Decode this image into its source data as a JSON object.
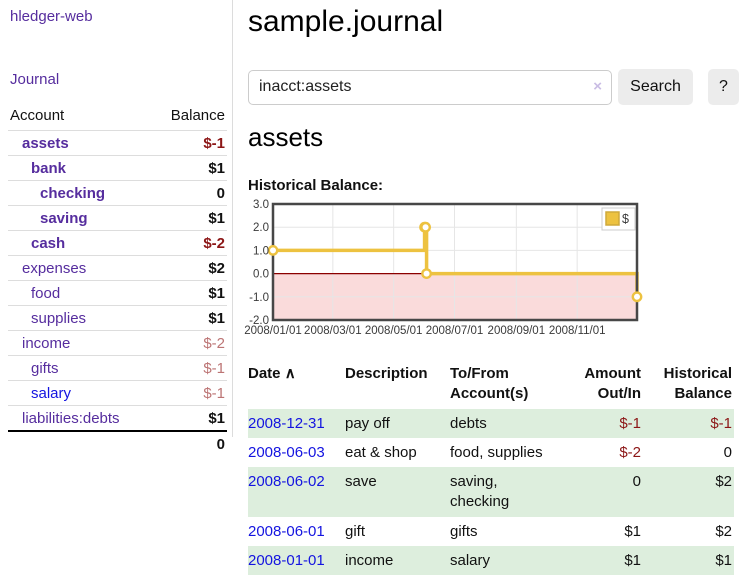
{
  "app": {
    "brand": "hledger-web",
    "nav_journal": "Journal"
  },
  "sidebar": {
    "headers": {
      "account": "Account",
      "balance": "Balance"
    },
    "accounts": [
      {
        "name": "assets",
        "balance": "$-1"
      },
      {
        "name": "bank",
        "balance": "$1"
      },
      {
        "name": "checking",
        "balance": "0"
      },
      {
        "name": "saving",
        "balance": "$1"
      },
      {
        "name": "cash",
        "balance": "$-2"
      },
      {
        "name": "expenses",
        "balance": "$2"
      },
      {
        "name": "food",
        "balance": "$1"
      },
      {
        "name": "supplies",
        "balance": "$1"
      },
      {
        "name": "income",
        "balance": "$-2"
      },
      {
        "name": "gifts",
        "balance": "$-1"
      },
      {
        "name": "salary",
        "balance": "$-1"
      },
      {
        "name": "liabilities:debts",
        "balance": "$1"
      }
    ],
    "total": "0"
  },
  "header": {
    "title": "sample.journal"
  },
  "search": {
    "value": "inacct:assets",
    "clear_icon": "×",
    "button_label": "Search",
    "help_label": "?"
  },
  "account_page": {
    "title": "assets",
    "chart_label": "Historical Balance:"
  },
  "chart_data": {
    "type": "line",
    "step": true,
    "title": "Historical Balance",
    "series": [
      {
        "name": "$",
        "color": "#EDC240",
        "points": [
          [
            "2008-01-01",
            1.0
          ],
          [
            "2008-06-01",
            2.0
          ],
          [
            "2008-06-02",
            2.0
          ],
          [
            "2008-06-03",
            0.0
          ],
          [
            "2008-12-31",
            -1.0
          ]
        ]
      }
    ],
    "xlim": [
      "2008-01-01",
      "2008-12-31"
    ],
    "ylim": [
      -2,
      3
    ],
    "x_ticks": [
      "2008/01/01",
      "2008/03/01",
      "2008/05/01",
      "2008/07/01",
      "2008/09/01",
      "2008/11/01"
    ],
    "y_ticks": [
      3.0,
      2.0,
      1.0,
      0.0,
      -1.0,
      -2.0
    ],
    "legend": {
      "label": "$",
      "position": "top-right"
    },
    "grid": true,
    "colors": {
      "line": "#EDC240",
      "marker_fill": "#ffffff",
      "negative_region": "#fadbdb",
      "zero_line": "#8b0000",
      "border": "#474747",
      "gridline": "#e6e6e6",
      "tick_text": "#3a3a3a"
    }
  },
  "register": {
    "headers": {
      "date": "Date",
      "sort_icon": "∧",
      "description": "Description",
      "accounts": "To/From Account(s)",
      "amount": "Amount Out/In",
      "balance": "Historical Balance"
    },
    "rows": [
      {
        "date": "2008-12-31",
        "description": "pay off",
        "accounts": "debts",
        "amount": "$-1",
        "balance": "$-1",
        "amount_negative": true,
        "balance_negative": true
      },
      {
        "date": "2008-06-03",
        "description": "eat & shop",
        "accounts": "food, supplies",
        "amount": "$-2",
        "balance": "0",
        "amount_negative": true,
        "balance_negative": false
      },
      {
        "date": "2008-06-02",
        "description": "save",
        "accounts": "saving,\nchecking",
        "amount": "0",
        "balance": "$2",
        "amount_negative": false,
        "balance_negative": false
      },
      {
        "date": "2008-06-01",
        "description": "gift",
        "accounts": "gifts",
        "amount": "$1",
        "balance": "$2",
        "amount_negative": false,
        "balance_negative": false
      },
      {
        "date": "2008-01-01",
        "description": "income",
        "accounts": "salary",
        "amount": "$1",
        "balance": "$1",
        "amount_negative": false,
        "balance_negative": false
      }
    ]
  }
}
